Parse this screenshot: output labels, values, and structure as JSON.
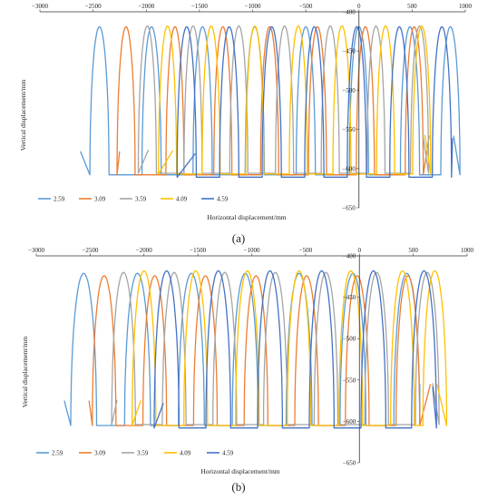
{
  "figure": {
    "panels": [
      {
        "label": "(a)"
      },
      {
        "label": "(b)"
      }
    ]
  },
  "chart_data": [
    {
      "type": "line",
      "panel_label": "(a)",
      "xlabel": "Horizontal displacement/mm",
      "ylabel": "Vertical displacement/mm",
      "xlim": [
        -3000,
        1000
      ],
      "ylim": [
        -650,
        -400
      ],
      "x_ticks": [
        -3000,
        -2500,
        -2000,
        -1500,
        -1000,
        -500,
        0,
        500,
        1000
      ],
      "y_ticks": [
        -400,
        -450,
        -500,
        -550,
        -600,
        -650
      ],
      "grid": false,
      "legend_position": "bottom-left",
      "colors": {
        "2.59": "#5b9bd5",
        "3.09": "#ed7d31",
        "3.59": "#a5a5a5",
        "4.09": "#ffc000",
        "4.59": "#4472c4"
      },
      "series": [
        {
          "name": "2.59",
          "color": "#5b9bd5",
          "x_start": -2620,
          "end_x": 890,
          "lobe_centers": [
            -2440,
            -1950,
            -1470,
            -980,
            -500,
            0,
            480,
            860
          ],
          "lobe_half_width": 90,
          "lobe_top": -419,
          "lobe_bottom": -608
        },
        {
          "name": "3.09",
          "color": "#ed7d31",
          "x_start": -2250,
          "end_x": 660,
          "lobe_centers": [
            -2190,
            -1730,
            -1280,
            -840,
            -390,
            60,
            520
          ],
          "lobe_half_width": 85,
          "lobe_top": -419,
          "lobe_bottom": -608
        },
        {
          "name": "3.59",
          "color": "#a5a5a5",
          "x_start": -1980,
          "end_x": 600,
          "lobe_centers": [
            -1990,
            -1560,
            -1130,
            -700,
            -270,
            160,
            570
          ],
          "lobe_half_width": 85,
          "lobe_top": -418,
          "lobe_bottom": -606
        },
        {
          "name": "4.09",
          "color": "#ffc000",
          "x_start": -1750,
          "end_x": 620,
          "lobe_centers": [
            -1800,
            -1390,
            -980,
            -570,
            -160,
            250,
            590
          ],
          "lobe_half_width": 85,
          "lobe_top": -418,
          "lobe_bottom": -607
        },
        {
          "name": "4.59",
          "color": "#4472c4",
          "x_start": -1540,
          "end_x": 880,
          "lobe_centers": [
            -1620,
            -1220,
            -820,
            -420,
            -20,
            380,
            780
          ],
          "lobe_half_width": 90,
          "lobe_top": -419,
          "lobe_bottom": -611
        }
      ]
    },
    {
      "type": "line",
      "panel_label": "(b)",
      "xlabel": "Horizontal displacement/mm",
      "ylabel": "Vertical displacement/mm",
      "xlim": [
        -3000,
        1000
      ],
      "ylim": [
        -650,
        -400
      ],
      "x_ticks": [
        -3000,
        -2500,
        -2000,
        -1500,
        -1000,
        -500,
        0,
        500,
        1000
      ],
      "y_ticks": [
        -400,
        -450,
        -500,
        -550,
        -600,
        -650
      ],
      "grid": false,
      "legend_position": "bottom-left",
      "colors": {
        "2.59": "#5b9bd5",
        "3.09": "#ed7d31",
        "3.59": "#a5a5a5",
        "4.09": "#ffc000",
        "4.59": "#4472c4"
      },
      "series": [
        {
          "name": "2.59",
          "color": "#5b9bd5",
          "x_start": -2740,
          "end_x": 560,
          "lobe_centers": [
            -2560,
            -2060,
            -1560,
            -1060,
            -560,
            -60,
            440
          ],
          "lobe_half_width": 120,
          "lobe_top": -421,
          "lobe_bottom": -605
        },
        {
          "name": "3.09",
          "color": "#ed7d31",
          "x_start": -2510,
          "end_x": 660,
          "lobe_centers": [
            -2370,
            -1900,
            -1430,
            -960,
            -490,
            -20,
            450
          ],
          "lobe_half_width": 110,
          "lobe_top": -424,
          "lobe_bottom": -605
        },
        {
          "name": "3.59",
          "color": "#a5a5a5",
          "x_start": -2250,
          "end_x": 680,
          "lobe_centers": [
            -2190,
            -1720,
            -1250,
            -780,
            -310,
            160,
            630
          ],
          "lobe_half_width": 110,
          "lobe_top": -420,
          "lobe_bottom": -604
        },
        {
          "name": "4.09",
          "color": "#ffc000",
          "x_start": -2030,
          "end_x": 720,
          "lobe_centers": [
            -2000,
            -1520,
            -1040,
            -560,
            -80,
            400,
            700
          ],
          "lobe_half_width": 110,
          "lobe_top": -418,
          "lobe_bottom": -605
        },
        {
          "name": "4.59",
          "color": "#4472c4",
          "x_start": -1820,
          "end_x": 680,
          "lobe_centers": [
            -1790,
            -1310,
            -830,
            -350,
            130,
            600
          ],
          "lobe_half_width": 115,
          "lobe_top": -418,
          "lobe_bottom": -608
        }
      ]
    }
  ]
}
